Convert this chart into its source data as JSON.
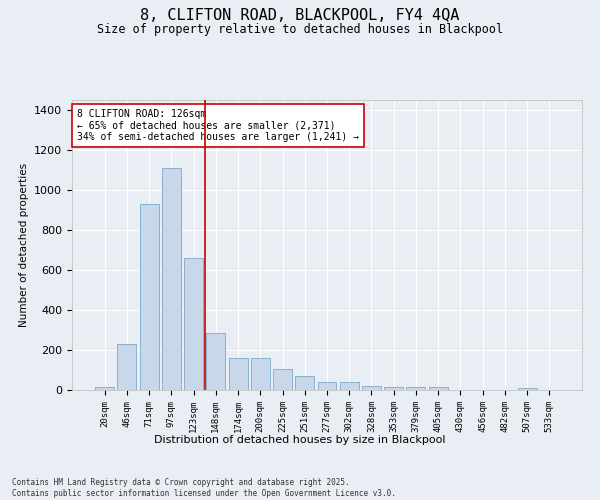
{
  "title": "8, CLIFTON ROAD, BLACKPOOL, FY4 4QA",
  "subtitle": "Size of property relative to detached houses in Blackpool",
  "xlabel": "Distribution of detached houses by size in Blackpool",
  "ylabel": "Number of detached properties",
  "footer_line1": "Contains HM Land Registry data © Crown copyright and database right 2025.",
  "footer_line2": "Contains public sector information licensed under the Open Government Licence v3.0.",
  "bar_color": "#c8d8ea",
  "bar_edge_color": "#7aaac8",
  "background_color": "#e8eef4",
  "grid_color": "#ffffff",
  "vline_color": "#cc0000",
  "annotation_text": "8 CLIFTON ROAD: 126sqm\n← 65% of detached houses are smaller (2,371)\n34% of semi-detached houses are larger (1,241) →",
  "annotation_box_edge": "#cc0000",
  "categories": [
    "20sqm",
    "46sqm",
    "71sqm",
    "97sqm",
    "123sqm",
    "148sqm",
    "174sqm",
    "200sqm",
    "225sqm",
    "251sqm",
    "277sqm",
    "302sqm",
    "328sqm",
    "353sqm",
    "379sqm",
    "405sqm",
    "430sqm",
    "456sqm",
    "482sqm",
    "507sqm",
    "533sqm"
  ],
  "values": [
    15,
    228,
    930,
    1110,
    660,
    285,
    160,
    160,
    105,
    72,
    42,
    42,
    20,
    15,
    15,
    15,
    0,
    0,
    0,
    8,
    0
  ],
  "ylim": [
    0,
    1450
  ],
  "yticks": [
    0,
    200,
    400,
    600,
    800,
    1000,
    1200,
    1400
  ],
  "vline_index": 4.5
}
